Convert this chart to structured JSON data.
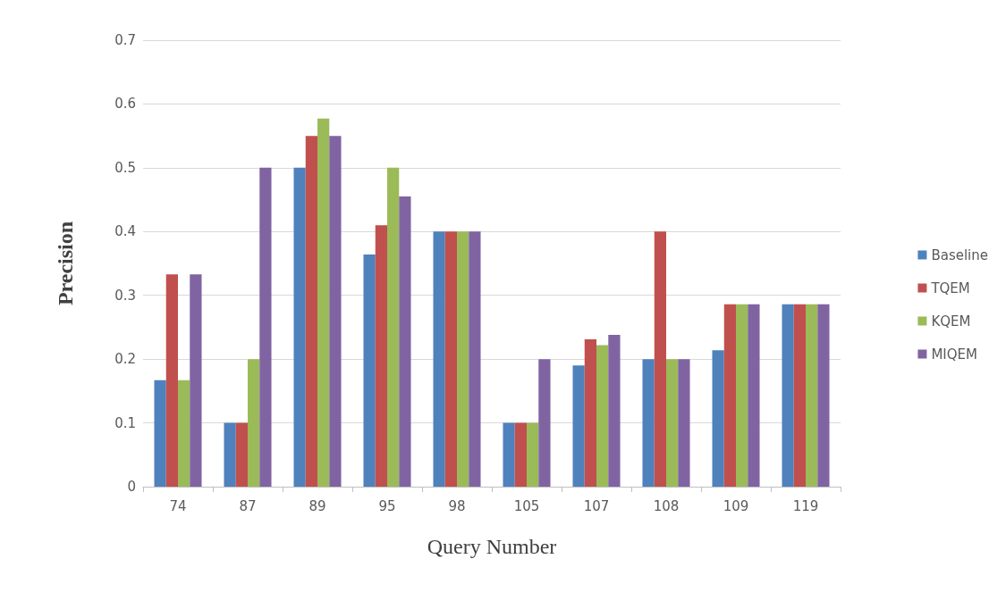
{
  "chart_data": {
    "type": "bar",
    "xlabel": "Query Number",
    "ylabel": "Precision",
    "categories": [
      "74",
      "87",
      "89",
      "95",
      "98",
      "105",
      "107",
      "108",
      "109",
      "119"
    ],
    "series": [
      {
        "name": "Baseline",
        "color": "#4f81bd",
        "values": [
          0.167,
          0.1,
          0.5,
          0.364,
          0.4,
          0.1,
          0.19,
          0.2,
          0.214,
          0.286
        ]
      },
      {
        "name": "TQEM",
        "color": "#c0504d",
        "values": [
          0.333,
          0.1,
          0.55,
          0.41,
          0.4,
          0.1,
          0.231,
          0.4,
          0.286,
          0.286
        ]
      },
      {
        "name": "KQEM",
        "color": "#9bbb59",
        "values": [
          0.167,
          0.2,
          0.577,
          0.5,
          0.4,
          0.1,
          0.222,
          0.2,
          0.286,
          0.286
        ]
      },
      {
        "name": "MIQEM",
        "color": "#8064a2",
        "values": [
          0.333,
          0.5,
          0.55,
          0.455,
          0.4,
          0.2,
          0.238,
          0.2,
          0.286,
          0.286
        ]
      }
    ],
    "ylim": [
      0,
      0.7
    ],
    "yticks": [
      0,
      0.1,
      0.2,
      0.3,
      0.4,
      0.5,
      0.6,
      0.7
    ],
    "grid": "y",
    "legend": "right"
  }
}
